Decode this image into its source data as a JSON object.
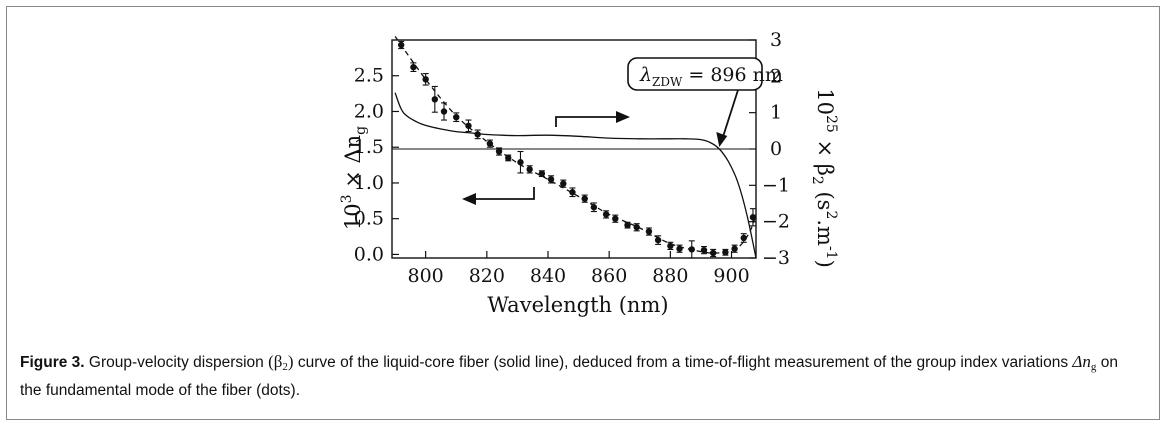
{
  "chart_data": {
    "type": "scatter",
    "xlabel": "Wavelength (nm)",
    "xlim": [
      789,
      908
    ],
    "x_ticks": [
      800,
      820,
      840,
      860,
      880,
      900
    ],
    "y_left": {
      "lim": [
        -0.05,
        3.0
      ],
      "ticks": [
        0.0,
        0.5,
        1.0,
        1.5,
        2.0,
        2.5
      ],
      "tick_labels": [
        "0.0",
        "0.5",
        "1.0",
        "1.5",
        "2.0",
        "2.5"
      ]
    },
    "y_right": {
      "lim": [
        -3,
        3
      ],
      "ticks": [
        3,
        2,
        1,
        0,
        -1,
        -2,
        -3
      ],
      "tick_labels": [
        "3",
        "2",
        "1",
        "0",
        "−1",
        "−2",
        "−3"
      ]
    },
    "grid": false,
    "series": [
      {
        "kind": "dots_with_errorbars",
        "axis": "left",
        "x": [
          792,
          796,
          800,
          803,
          806,
          810,
          814,
          817,
          821,
          824,
          827,
          831,
          834,
          838,
          841,
          845,
          848,
          852,
          855,
          859,
          862,
          866,
          869,
          873,
          876,
          880,
          883,
          887,
          891,
          894,
          898,
          901,
          904,
          907
        ],
        "y": [
          2.93,
          2.62,
          2.45,
          2.17,
          2.0,
          1.92,
          1.8,
          1.68,
          1.55,
          1.44,
          1.35,
          1.29,
          1.19,
          1.13,
          1.05,
          0.99,
          0.87,
          0.78,
          0.66,
          0.56,
          0.5,
          0.41,
          0.38,
          0.32,
          0.2,
          0.12,
          0.08,
          0.07,
          0.06,
          0.02,
          0.03,
          0.08,
          0.23,
          0.52
        ],
        "err": [
          0.05,
          0.06,
          0.08,
          0.18,
          0.12,
          0.06,
          0.08,
          0.06,
          0.05,
          0.05,
          0.04,
          0.15,
          0.05,
          0.04,
          0.05,
          0.05,
          0.06,
          0.05,
          0.06,
          0.05,
          0.05,
          0.04,
          0.05,
          0.05,
          0.06,
          0.05,
          0.05,
          0.12,
          0.05,
          0.05,
          0.04,
          0.05,
          0.06,
          0.12
        ]
      },
      {
        "kind": "dashed_fit",
        "axis": "left",
        "x": [
          790,
          800,
          810,
          820,
          830,
          840,
          850,
          860,
          870,
          880,
          890,
          895,
          900,
          903,
          906,
          908
        ],
        "y": [
          3.05,
          2.45,
          1.94,
          1.58,
          1.28,
          1.05,
          0.81,
          0.56,
          0.37,
          0.15,
          0.04,
          0.02,
          0.05,
          0.13,
          0.32,
          0.55
        ]
      },
      {
        "kind": "solid_beta2",
        "axis": "right",
        "x": [
          790,
          792,
          794,
          797,
          800,
          805,
          810,
          815,
          820,
          825,
          830,
          840,
          850,
          860,
          870,
          880,
          885,
          890,
          893,
          896,
          899,
          902,
          905,
          908
        ],
        "y": [
          1.55,
          1.1,
          0.9,
          0.75,
          0.65,
          0.55,
          0.48,
          0.44,
          0.4,
          0.38,
          0.37,
          0.38,
          0.35,
          0.3,
          0.28,
          0.28,
          0.28,
          0.26,
          0.18,
          0.0,
          -0.35,
          -0.9,
          -1.8,
          -3.0
        ]
      }
    ],
    "hline_right_y": 0,
    "annotations": {
      "zdw_label": "λ",
      "zdw_sub": "ZDW",
      "zdw_rest": " = 896 nm",
      "zdw_x": 896,
      "arrow_left_points_to": "left axis",
      "arrow_right_points_to": "right axis"
    },
    "left_axis_label": {
      "pre": "10",
      "sup": "3",
      "rest": " × Δn",
      "sub": "g"
    },
    "right_axis_label": {
      "pre": "10",
      "sup": "25",
      "rest": " × β",
      "sub": "2",
      "unit_open": "  (s",
      "unit_sup1": "2",
      "unit_mid": ".m",
      "unit_sup2": "-1",
      "unit_close": ")"
    }
  },
  "caption": {
    "label": "Figure 3.",
    "text_1": " Group-velocity dispersion ",
    "beta": "(β",
    "beta_sub": "2",
    "beta_close": ")",
    "text_2": " curve of the liquid-core fiber (solid line), deduced from a time-of-flight measurement of the group index variations ",
    "dn": "Δn",
    "dn_sub": "g",
    "text_3": " on the fundamental mode of the fiber (dots)."
  }
}
